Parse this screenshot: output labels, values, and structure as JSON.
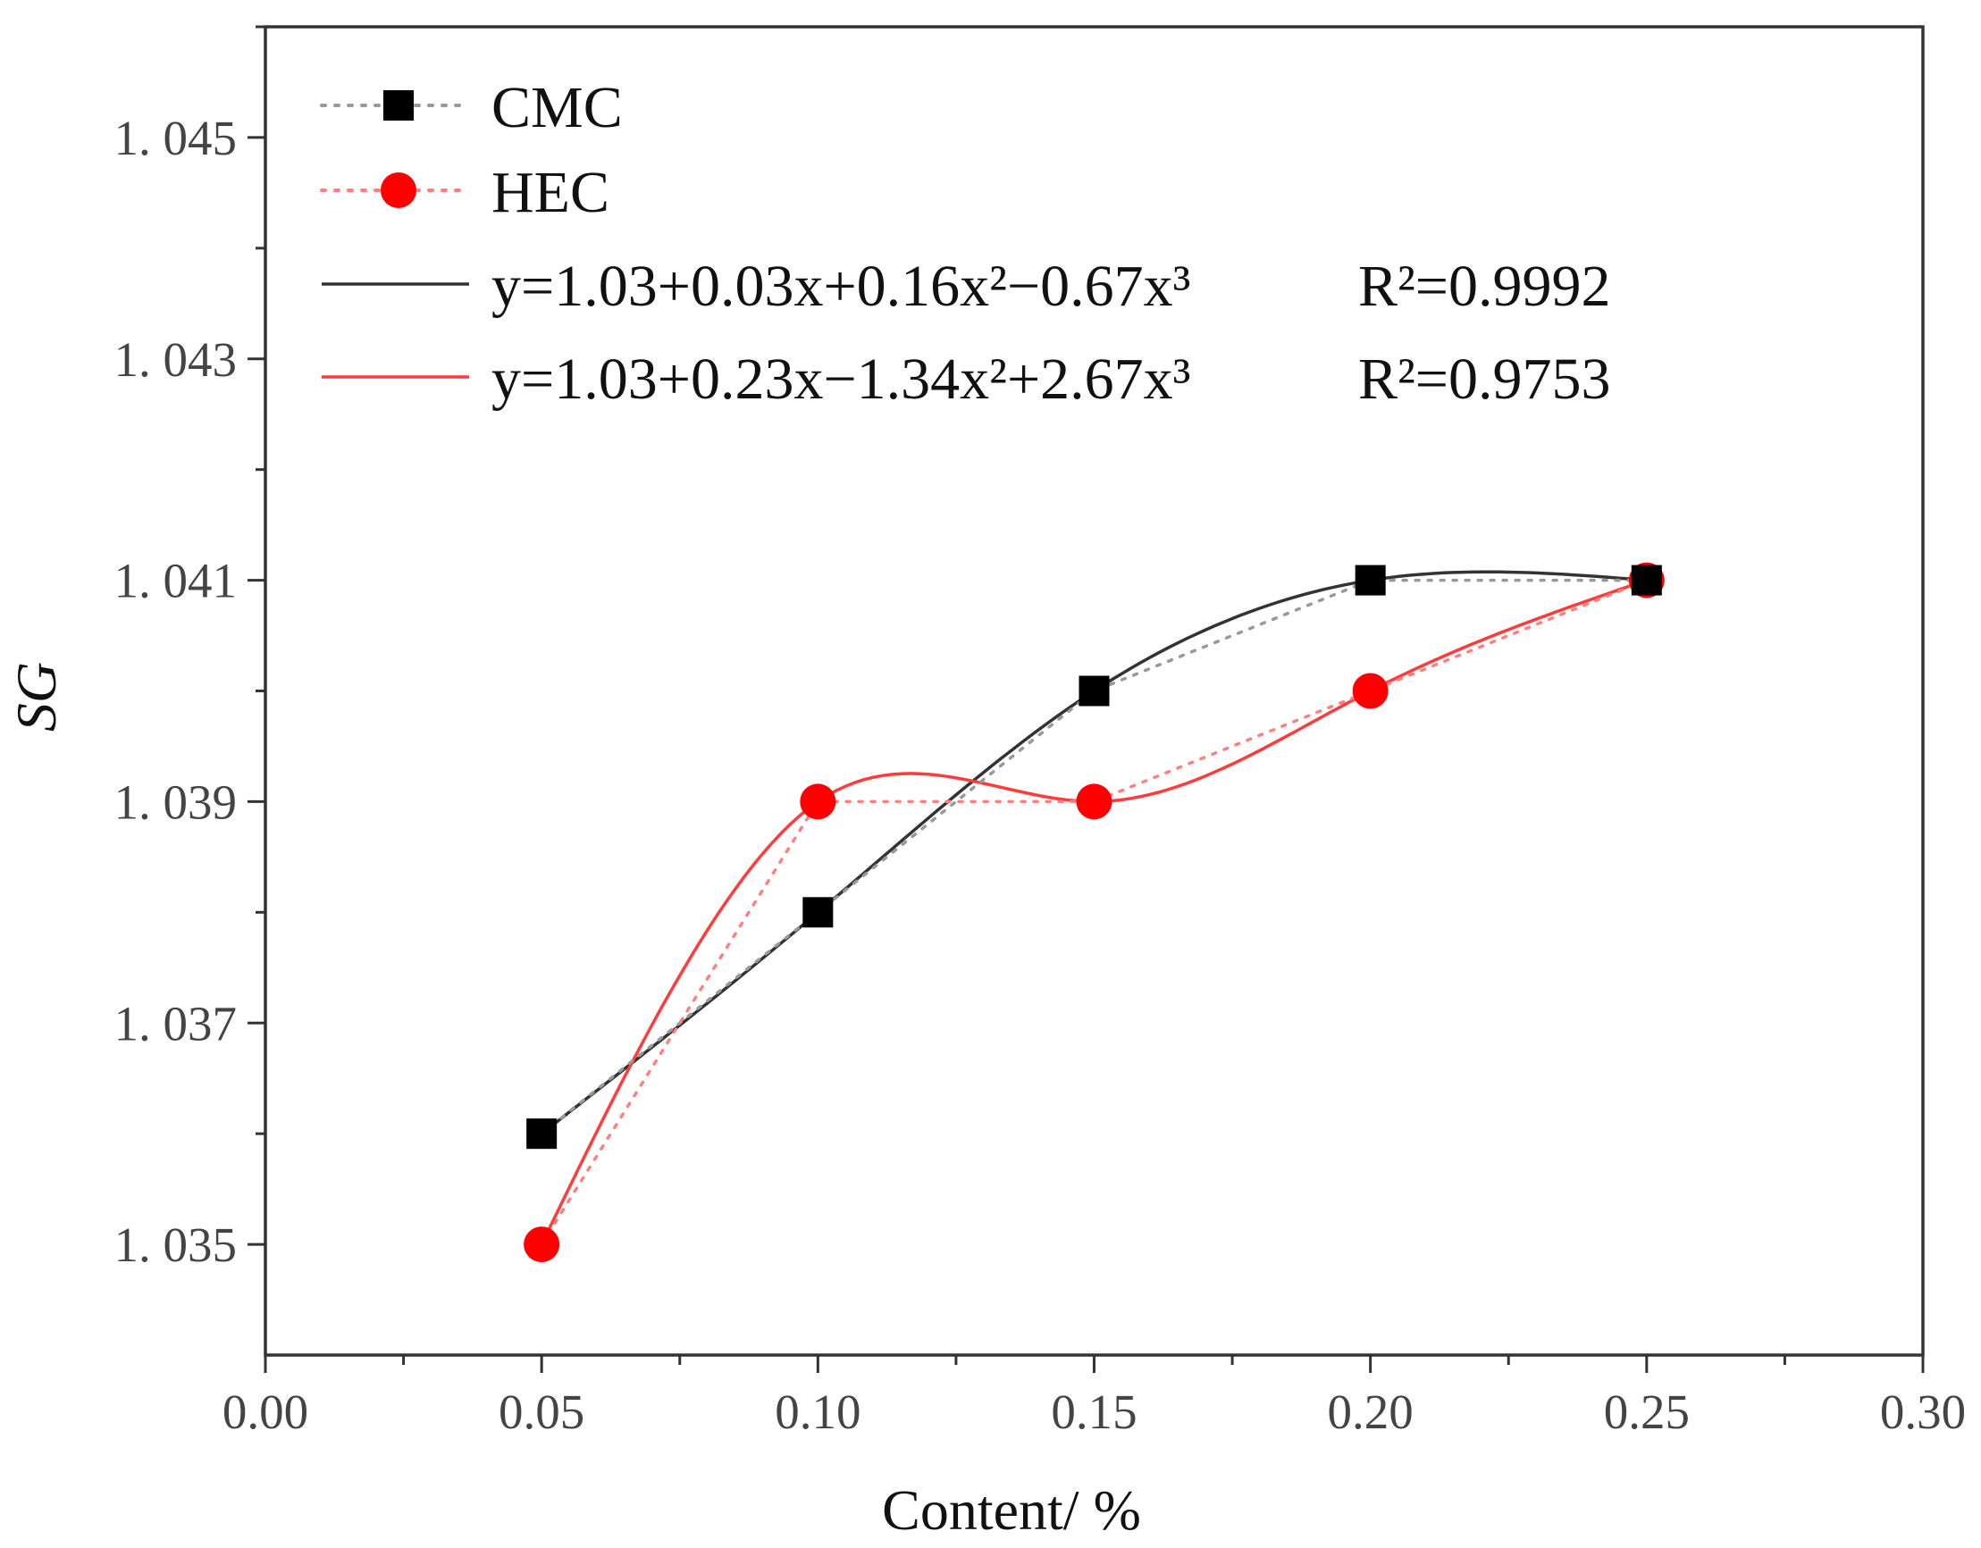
{
  "chart_data": {
    "type": "scatter",
    "xlabel": "Content/ %",
    "ylabel": "SG",
    "xlim": [
      0.0,
      0.3
    ],
    "ylim": [
      1.034,
      1.046
    ],
    "x_ticks": [
      0.0,
      0.05,
      0.1,
      0.15,
      0.2,
      0.25,
      0.3
    ],
    "x_tick_labels": [
      "0.00",
      "0.05",
      "0.10",
      "0.15",
      "0.20",
      "0.25",
      "0.30"
    ],
    "y_ticks": [
      1.035,
      1.037,
      1.039,
      1.041,
      1.043,
      1.045
    ],
    "y_tick_labels": [
      "1. 035",
      "1. 037",
      "1. 039",
      "1. 041",
      "1. 043",
      "1. 045"
    ],
    "series": [
      {
        "name": "CMC",
        "marker": "square",
        "line": "dotted",
        "color": "#000000",
        "line_color": "#999999",
        "x": [
          0.05,
          0.1,
          0.15,
          0.2,
          0.25
        ],
        "values": [
          1.036,
          1.038,
          1.04,
          1.041,
          1.041
        ]
      },
      {
        "name": "HEC",
        "marker": "circle",
        "line": "dotted",
        "color": "#ff0000",
        "line_color": "#ff8080",
        "x": [
          0.05,
          0.1,
          0.15,
          0.2,
          0.25
        ],
        "values": [
          1.035,
          1.039,
          1.039,
          1.04,
          1.041
        ]
      }
    ],
    "fits": [
      {
        "series": "CMC",
        "color": "#333333",
        "equation": "y=1.03+0.03x+0.16x²−0.67x³",
        "r2_label": "R²=0.9992"
      },
      {
        "series": "HEC",
        "color": "#ff3b3b",
        "equation": "y=1.03+0.23x−1.34x²+2.67x³",
        "r2_label": "R²=0.9753"
      }
    ]
  }
}
